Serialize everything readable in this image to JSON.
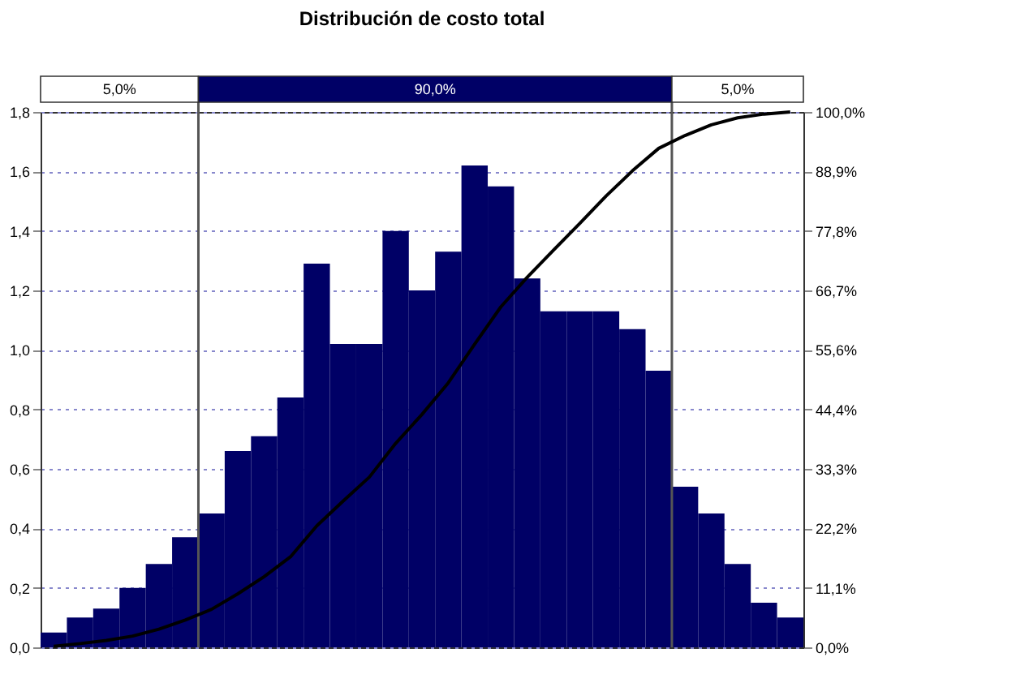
{
  "chart_data": {
    "type": "bar",
    "title": "Distribución de costo total",
    "color": "#000066",
    "categories": [
      null,
      null,
      null,
      null,
      null,
      null,
      null,
      null,
      null,
      null,
      null,
      null,
      null,
      null,
      null,
      null,
      null,
      null,
      null,
      null,
      null,
      null,
      null,
      null,
      null,
      null,
      null,
      null,
      null
    ],
    "values": [
      0.05,
      0.1,
      0.13,
      0.2,
      0.28,
      0.37,
      0.45,
      0.66,
      0.71,
      0.84,
      1.29,
      1.02,
      1.02,
      1.4,
      1.2,
      1.33,
      1.62,
      1.55,
      1.24,
      1.13,
      1.13,
      1.13,
      1.07,
      0.93,
      0.54,
      0.45,
      0.28,
      0.15,
      0.1
    ],
    "series": [
      {
        "type": "line",
        "axis": "y2",
        "color": "#000000",
        "values": [
          0.2,
          0.7,
          1.3,
          2.1,
          3.4,
          5.1,
          7.1,
          10.0,
          13.2,
          16.9,
          22.7,
          27.3,
          31.8,
          38.1,
          43.5,
          49.4,
          56.6,
          63.6,
          69.1,
          74.2,
          79.2,
          84.3,
          89.0,
          93.2,
          95.6,
          97.6,
          98.9,
          99.6,
          100
        ]
      }
    ],
    "ylim": [
      0,
      1.8
    ],
    "yticks": [
      {
        "value": 0,
        "label": "0,0"
      },
      {
        "value": 0.2,
        "label": "0,2"
      },
      {
        "value": 0.4,
        "label": "0,4"
      },
      {
        "value": 0.6,
        "label": "0,6"
      },
      {
        "value": 0.8,
        "label": "0,8"
      },
      {
        "value": 1.0,
        "label": "1,0"
      },
      {
        "value": 1.2,
        "label": "1,2"
      },
      {
        "value": 1.4,
        "label": "1,4"
      },
      {
        "value": 1.6,
        "label": "1,6"
      },
      {
        "value": 1.8,
        "label": "1,8"
      }
    ],
    "y2lim": [
      0,
      100
    ],
    "y2ticks": [
      {
        "value": 0,
        "label": "0,0%"
      },
      {
        "value": 11.1,
        "label": "11,1%"
      },
      {
        "value": 22.2,
        "label": "22,2%"
      },
      {
        "value": 33.3,
        "label": "33,3%"
      },
      {
        "value": 44.4,
        "label": "44,4%"
      },
      {
        "value": 55.6,
        "label": "55,6%"
      },
      {
        "value": 66.7,
        "label": "66,7%"
      },
      {
        "value": 77.8,
        "label": "77,8%"
      },
      {
        "value": 88.9,
        "label": "88,9%"
      },
      {
        "value": 100,
        "label": "100,0%"
      }
    ],
    "annotations": [
      "5,0%",
      "90,0%",
      "5,0%"
    ],
    "grid": "y"
  }
}
